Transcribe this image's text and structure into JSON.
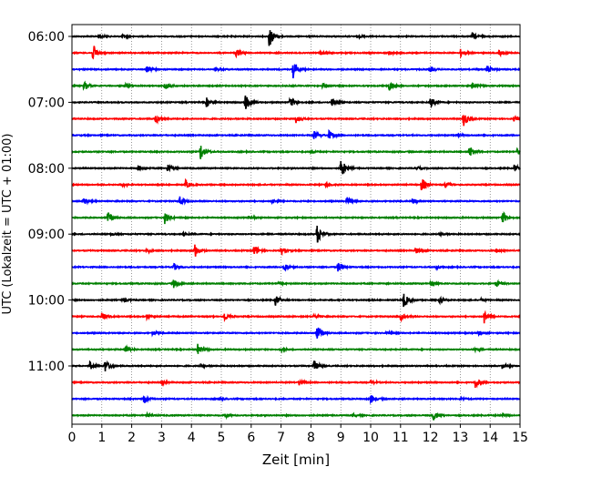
{
  "chart_data": {
    "type": "line",
    "title": "",
    "xlabel": "Zeit  [min]",
    "ylabel": "UTC (Lokalzeit = UTC + 01:00)",
    "xlim": [
      0,
      15
    ],
    "x_ticks": [
      0,
      1,
      2,
      3,
      4,
      5,
      6,
      7,
      8,
      9,
      10,
      11,
      12,
      13,
      14,
      15
    ],
    "x_tick_labels": [
      "0",
      "1",
      "2",
      "3",
      "4",
      "5",
      "6",
      "7",
      "8",
      "9",
      "10",
      "11",
      "12",
      "13",
      "14",
      "15"
    ],
    "y_tick_labels": [
      "06:00",
      "07:00",
      "08:00",
      "09:00",
      "10:00",
      "11:00"
    ],
    "x_grid": "dotted vertical",
    "legend": "none",
    "trace_minutes": 15,
    "trace_color_cycle": [
      "#000000",
      "#ff0000",
      "#0000ff",
      "#008000"
    ],
    "series": [
      {
        "start": "06:00",
        "events": [
          {
            "t": 0.9,
            "a": 0.15
          },
          {
            "t": 1.7,
            "a": 0.12
          },
          {
            "t": 6.6,
            "a": 0.9
          },
          {
            "t": 9.6,
            "a": 0.08
          },
          {
            "t": 13.4,
            "a": 0.3
          }
        ]
      },
      {
        "start": "06:15",
        "events": [
          {
            "t": 0.7,
            "a": 0.7
          },
          {
            "t": 5.5,
            "a": 0.35
          },
          {
            "t": 8.3,
            "a": 0.12
          },
          {
            "t": 10.6,
            "a": 0.15
          },
          {
            "t": 13.0,
            "a": 0.3
          },
          {
            "t": 14.3,
            "a": 0.2
          }
        ]
      },
      {
        "start": "06:30",
        "events": [
          {
            "t": 2.5,
            "a": 0.25
          },
          {
            "t": 4.8,
            "a": 0.12
          },
          {
            "t": 7.4,
            "a": 0.7
          },
          {
            "t": 12.0,
            "a": 0.2
          },
          {
            "t": 13.9,
            "a": 0.3
          }
        ]
      },
      {
        "start": "06:45",
        "events": [
          {
            "t": 0.4,
            "a": 0.35
          },
          {
            "t": 1.8,
            "a": 0.12
          },
          {
            "t": 3.1,
            "a": 0.35
          },
          {
            "t": 8.4,
            "a": 0.3
          },
          {
            "t": 10.6,
            "a": 0.5
          },
          {
            "t": 13.4,
            "a": 0.25
          }
        ]
      },
      {
        "start": "07:00",
        "events": [
          {
            "t": 4.5,
            "a": 0.4
          },
          {
            "t": 5.8,
            "a": 0.7
          },
          {
            "t": 7.3,
            "a": 0.5
          },
          {
            "t": 8.7,
            "a": 0.35
          },
          {
            "t": 12.0,
            "a": 0.4
          }
        ]
      },
      {
        "start": "07:15",
        "events": [
          {
            "t": 2.8,
            "a": 0.35
          },
          {
            "t": 7.5,
            "a": 0.3
          },
          {
            "t": 13.1,
            "a": 0.6
          },
          {
            "t": 14.8,
            "a": 0.2
          }
        ]
      },
      {
        "start": "07:30",
        "events": [
          {
            "t": 8.1,
            "a": 0.35
          },
          {
            "t": 8.6,
            "a": 0.4
          },
          {
            "t": 12.9,
            "a": 0.12
          }
        ]
      },
      {
        "start": "07:45",
        "events": [
          {
            "t": 4.3,
            "a": 0.7
          },
          {
            "t": 8.0,
            "a": 0.12
          },
          {
            "t": 13.3,
            "a": 0.5
          },
          {
            "t": 14.9,
            "a": 0.2
          }
        ]
      },
      {
        "start": "08:00",
        "events": [
          {
            "t": 2.2,
            "a": 0.25
          },
          {
            "t": 3.2,
            "a": 0.3
          },
          {
            "t": 9.0,
            "a": 0.9
          },
          {
            "t": 11.5,
            "a": 0.15
          },
          {
            "t": 14.8,
            "a": 0.3
          }
        ]
      },
      {
        "start": "08:15",
        "events": [
          {
            "t": 1.7,
            "a": 0.12
          },
          {
            "t": 3.8,
            "a": 0.35
          },
          {
            "t": 8.5,
            "a": 0.2
          },
          {
            "t": 11.7,
            "a": 0.6
          },
          {
            "t": 12.5,
            "a": 0.2
          }
        ]
      },
      {
        "start": "08:30",
        "events": [
          {
            "t": 0.4,
            "a": 0.3
          },
          {
            "t": 3.6,
            "a": 0.4
          },
          {
            "t": 6.7,
            "a": 0.2
          },
          {
            "t": 9.2,
            "a": 0.35
          },
          {
            "t": 11.4,
            "a": 0.2
          }
        ]
      },
      {
        "start": "08:45",
        "events": [
          {
            "t": 1.2,
            "a": 0.45
          },
          {
            "t": 3.1,
            "a": 0.5
          },
          {
            "t": 5.9,
            "a": 0.12
          },
          {
            "t": 14.4,
            "a": 0.55
          }
        ]
      },
      {
        "start": "09:00",
        "events": [
          {
            "t": 1.3,
            "a": 0.12
          },
          {
            "t": 3.7,
            "a": 0.15
          },
          {
            "t": 8.2,
            "a": 0.8
          },
          {
            "t": 12.3,
            "a": 0.12
          }
        ]
      },
      {
        "start": "09:15",
        "events": [
          {
            "t": 2.5,
            "a": 0.15
          },
          {
            "t": 4.1,
            "a": 0.6
          },
          {
            "t": 6.1,
            "a": 0.5
          },
          {
            "t": 7.0,
            "a": 0.3
          },
          {
            "t": 11.5,
            "a": 0.3
          },
          {
            "t": 14.2,
            "a": 0.15
          }
        ]
      },
      {
        "start": "09:30",
        "events": [
          {
            "t": 3.4,
            "a": 0.3
          },
          {
            "t": 7.1,
            "a": 0.35
          },
          {
            "t": 8.9,
            "a": 0.5
          },
          {
            "t": 12.2,
            "a": 0.12
          }
        ]
      },
      {
        "start": "09:45",
        "events": [
          {
            "t": 3.4,
            "a": 0.35
          },
          {
            "t": 6.9,
            "a": 0.12
          },
          {
            "t": 12.0,
            "a": 0.2
          },
          {
            "t": 14.2,
            "a": 0.3
          }
        ]
      },
      {
        "start": "10:00",
        "events": [
          {
            "t": 1.7,
            "a": 0.2
          },
          {
            "t": 6.8,
            "a": 0.45
          },
          {
            "t": 11.1,
            "a": 0.6
          },
          {
            "t": 12.3,
            "a": 0.2
          },
          {
            "t": 13.7,
            "a": 0.12
          }
        ]
      },
      {
        "start": "10:15",
        "events": [
          {
            "t": 1.0,
            "a": 0.3
          },
          {
            "t": 2.5,
            "a": 0.2
          },
          {
            "t": 5.1,
            "a": 0.35
          },
          {
            "t": 8.1,
            "a": 0.15
          },
          {
            "t": 11.0,
            "a": 0.3
          },
          {
            "t": 13.8,
            "a": 0.55
          }
        ]
      },
      {
        "start": "10:30",
        "events": [
          {
            "t": 2.7,
            "a": 0.15
          },
          {
            "t": 8.2,
            "a": 0.6
          },
          {
            "t": 10.5,
            "a": 0.12
          },
          {
            "t": 13.6,
            "a": 0.15
          }
        ]
      },
      {
        "start": "10:45",
        "events": [
          {
            "t": 1.8,
            "a": 0.25
          },
          {
            "t": 4.2,
            "a": 0.45
          },
          {
            "t": 7.0,
            "a": 0.12
          },
          {
            "t": 13.5,
            "a": 0.15
          }
        ]
      },
      {
        "start": "11:00",
        "events": [
          {
            "t": 0.6,
            "a": 0.3
          },
          {
            "t": 1.1,
            "a": 0.55
          },
          {
            "t": 4.3,
            "a": 0.12
          },
          {
            "t": 8.1,
            "a": 0.45
          },
          {
            "t": 14.4,
            "a": 0.2
          }
        ]
      },
      {
        "start": "11:15",
        "events": [
          {
            "t": 3.0,
            "a": 0.15
          },
          {
            "t": 7.6,
            "a": 0.25
          },
          {
            "t": 10.0,
            "a": 0.15
          },
          {
            "t": 13.5,
            "a": 0.4
          }
        ]
      },
      {
        "start": "11:30",
        "events": [
          {
            "t": 2.4,
            "a": 0.4
          },
          {
            "t": 4.9,
            "a": 0.12
          },
          {
            "t": 10.0,
            "a": 0.35
          },
          {
            "t": 13.0,
            "a": 0.12
          }
        ]
      },
      {
        "start": "11:45",
        "events": [
          {
            "t": 2.5,
            "a": 0.2
          },
          {
            "t": 5.1,
            "a": 0.2
          },
          {
            "t": 9.4,
            "a": 0.12
          },
          {
            "t": 12.1,
            "a": 0.45
          },
          {
            "t": 14.4,
            "a": 0.15
          }
        ]
      }
    ]
  }
}
